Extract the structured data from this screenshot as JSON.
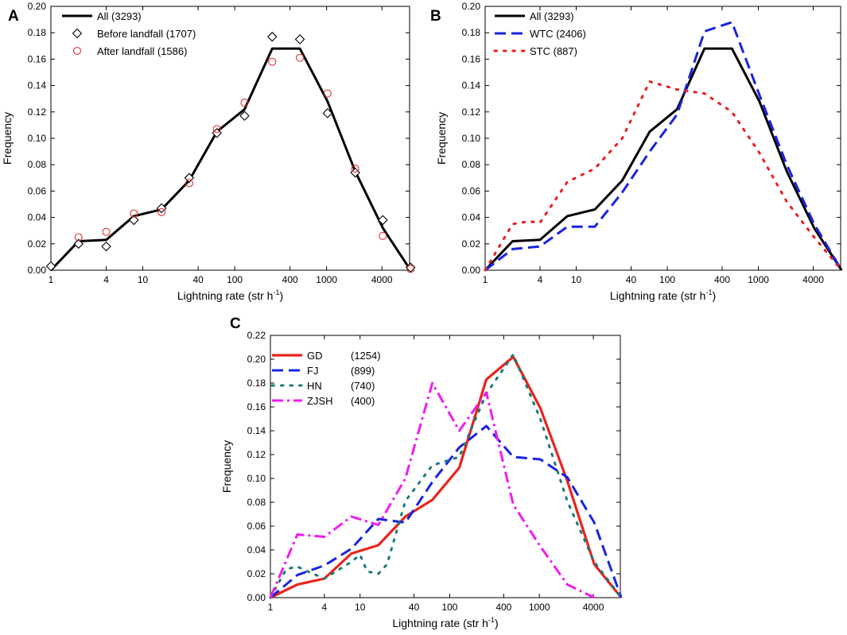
{
  "colors": {
    "black": "#000000",
    "red": "#e8251d",
    "marker_red": "#e03030",
    "blue": "#1a23e0",
    "dotted_red": "#e82020",
    "teal": "#1c7a7a",
    "magenta": "#f01cf0"
  },
  "chart_data": [
    {
      "panel": "A",
      "type": "line",
      "xscale": "log",
      "xlim": [
        1,
        8000
      ],
      "ylim": [
        0,
        0.2
      ],
      "xticks": [
        1,
        4,
        10,
        40,
        100,
        400,
        1000,
        4000
      ],
      "xtick_labels": [
        "1",
        "4",
        "10",
        "40",
        "100",
        "400",
        "1000",
        "4000"
      ],
      "yticks": [
        0,
        0.02,
        0.04,
        0.06,
        0.08,
        0.1,
        0.12,
        0.14,
        0.16,
        0.18,
        0.2
      ],
      "ytick_labels": [
        "0.00",
        "0.02",
        "0.04",
        "0.06",
        "0.08",
        "0.10",
        "0.12",
        "0.14",
        "0.16",
        "0.18",
        "0.20"
      ],
      "xlabel": "Lightning rate (str h",
      "xlabel_sup": "-1",
      "xlabel_end": ")",
      "ylabel": "Frequency",
      "legend_position": "top-left",
      "series": [
        {
          "name": "All (3293)",
          "style": "solid",
          "color": "#000000",
          "x": [
            1,
            2,
            4,
            8,
            16,
            32,
            64,
            128,
            256,
            512,
            1024,
            2048,
            4096,
            8192
          ],
          "y": [
            0.0,
            0.022,
            0.023,
            0.041,
            0.046,
            0.068,
            0.105,
            0.122,
            0.168,
            0.168,
            0.128,
            0.075,
            0.032,
            0.0
          ]
        },
        {
          "name": "Before landfall (1707)",
          "style": "diamond-marker",
          "color": "#000000",
          "x": [
            1,
            2,
            4,
            8,
            16,
            32,
            64,
            128,
            256,
            512,
            1024,
            2048,
            4096,
            8192
          ],
          "y": [
            0.003,
            0.02,
            0.018,
            0.038,
            0.047,
            0.07,
            0.104,
            0.117,
            0.177,
            0.175,
            0.119,
            0.074,
            0.038,
            0.002
          ]
        },
        {
          "name": "After landfall (1586)",
          "style": "circle-marker",
          "color": "#e03030",
          "x": [
            2,
            4,
            8,
            16,
            32,
            64,
            128,
            256,
            512,
            1024,
            2048,
            4096,
            8192
          ],
          "y": [
            0.025,
            0.029,
            0.043,
            0.044,
            0.066,
            0.107,
            0.127,
            0.158,
            0.161,
            0.134,
            0.077,
            0.026,
            0.001
          ]
        }
      ]
    },
    {
      "panel": "B",
      "type": "line",
      "xscale": "log",
      "xlim": [
        1,
        8000
      ],
      "ylim": [
        0,
        0.2
      ],
      "xticks": [
        1,
        4,
        10,
        40,
        100,
        400,
        1000,
        4000
      ],
      "xtick_labels": [
        "1",
        "4",
        "10",
        "40",
        "100",
        "400",
        "1000",
        "4000"
      ],
      "yticks": [
        0,
        0.02,
        0.04,
        0.06,
        0.08,
        0.1,
        0.12,
        0.14,
        0.16,
        0.18,
        0.2
      ],
      "ytick_labels": [
        "0.00",
        "0.02",
        "0.04",
        "0.06",
        "0.08",
        "0.10",
        "0.12",
        "0.14",
        "0.16",
        "0.18",
        "0.20"
      ],
      "xlabel": "Lightning rate (str h",
      "xlabel_sup": "-1",
      "xlabel_end": ")",
      "ylabel": "Frequency",
      "legend_position": "top-left",
      "series": [
        {
          "name": "All (3293)",
          "style": "solid",
          "color": "#000000",
          "x": [
            1,
            2,
            4,
            8,
            16,
            32,
            64,
            128,
            256,
            512,
            1024,
            2048,
            4096,
            8192
          ],
          "y": [
            0.0,
            0.022,
            0.023,
            0.041,
            0.046,
            0.068,
            0.105,
            0.122,
            0.168,
            0.168,
            0.128,
            0.075,
            0.032,
            0.0
          ]
        },
        {
          "name": "WTC (2406)",
          "style": "dashed",
          "color": "#1a23e0",
          "x": [
            1,
            2,
            4,
            8,
            16,
            32,
            64,
            128,
            256,
            512,
            1024,
            2048,
            4096,
            8192
          ],
          "y": [
            0.0,
            0.016,
            0.018,
            0.033,
            0.033,
            0.059,
            0.09,
            0.118,
            0.181,
            0.188,
            0.133,
            0.08,
            0.035,
            0.0
          ]
        },
        {
          "name": "STC (887)",
          "style": "dotted",
          "color": "#e82020",
          "x": [
            1,
            2,
            3,
            4,
            8,
            16,
            32,
            64,
            128,
            256,
            512,
            1024,
            2048,
            4096,
            8192
          ],
          "y": [
            0.0,
            0.035,
            0.037,
            0.036,
            0.067,
            0.077,
            0.1,
            0.143,
            0.137,
            0.134,
            0.12,
            0.089,
            0.052,
            0.025,
            0.0
          ]
        }
      ]
    },
    {
      "panel": "C",
      "type": "line",
      "xscale": "log",
      "xlim": [
        1,
        8000
      ],
      "ylim": [
        0,
        0.22
      ],
      "xticks": [
        1,
        4,
        10,
        40,
        100,
        400,
        1000,
        4000
      ],
      "xtick_labels": [
        "1",
        "4",
        "10",
        "40",
        "100",
        "400",
        "1000",
        "4000"
      ],
      "yticks": [
        0,
        0.02,
        0.04,
        0.06,
        0.08,
        0.1,
        0.12,
        0.14,
        0.16,
        0.18,
        0.2,
        0.22
      ],
      "ytick_labels": [
        "0.00",
        "0.02",
        "0.04",
        "0.06",
        "0.08",
        "0.10",
        "0.12",
        "0.14",
        "0.16",
        "0.18",
        "0.20",
        "0.22"
      ],
      "xlabel": "Lightning rate (str h",
      "xlabel_sup": "-1",
      "xlabel_end": ")",
      "ylabel": "Frequency",
      "legend_position": "top-left",
      "series": [
        {
          "name": "GD",
          "count": "(1254)",
          "style": "solid-thick",
          "color": "#e8251d",
          "x": [
            1,
            2,
            4,
            8,
            16,
            32,
            64,
            128,
            256,
            512,
            1024,
            2048,
            4096,
            8192
          ],
          "y": [
            0.0,
            0.011,
            0.016,
            0.037,
            0.044,
            0.068,
            0.082,
            0.109,
            0.183,
            0.202,
            0.159,
            0.098,
            0.028,
            0.0
          ]
        },
        {
          "name": "FJ",
          "count": "(899)",
          "style": "dashed",
          "color": "#1a23e0",
          "x": [
            1,
            2,
            4,
            8,
            16,
            32,
            64,
            128,
            256,
            512,
            1024,
            2048,
            4096,
            8192
          ],
          "y": [
            0.0,
            0.019,
            0.027,
            0.041,
            0.066,
            0.063,
            0.097,
            0.126,
            0.144,
            0.118,
            0.116,
            0.101,
            0.063,
            0.0
          ]
        },
        {
          "name": "HN",
          "count": "(740)",
          "style": "dotted",
          "color": "#1c7a7a",
          "x": [
            1,
            1.5,
            2,
            3,
            4,
            8,
            10,
            12,
            16,
            20,
            32,
            64,
            128,
            256,
            512,
            1024,
            2048,
            4096,
            8192
          ],
          "y": [
            0.0,
            0.024,
            0.026,
            0.02,
            0.016,
            0.03,
            0.036,
            0.022,
            0.02,
            0.028,
            0.081,
            0.111,
            0.118,
            0.171,
            0.204,
            0.15,
            0.081,
            0.03,
            0.0
          ]
        },
        {
          "name": "ZJSH",
          "count": "(400)",
          "style": "dash-dot",
          "color": "#f01cf0",
          "x": [
            1,
            2,
            4,
            8,
            16,
            32,
            64,
            128,
            256,
            512,
            1024,
            2048,
            4096
          ],
          "y": [
            0.0,
            0.053,
            0.051,
            0.068,
            0.061,
            0.1,
            0.18,
            0.14,
            0.172,
            0.078,
            0.043,
            0.011,
            0.0
          ]
        }
      ]
    }
  ]
}
